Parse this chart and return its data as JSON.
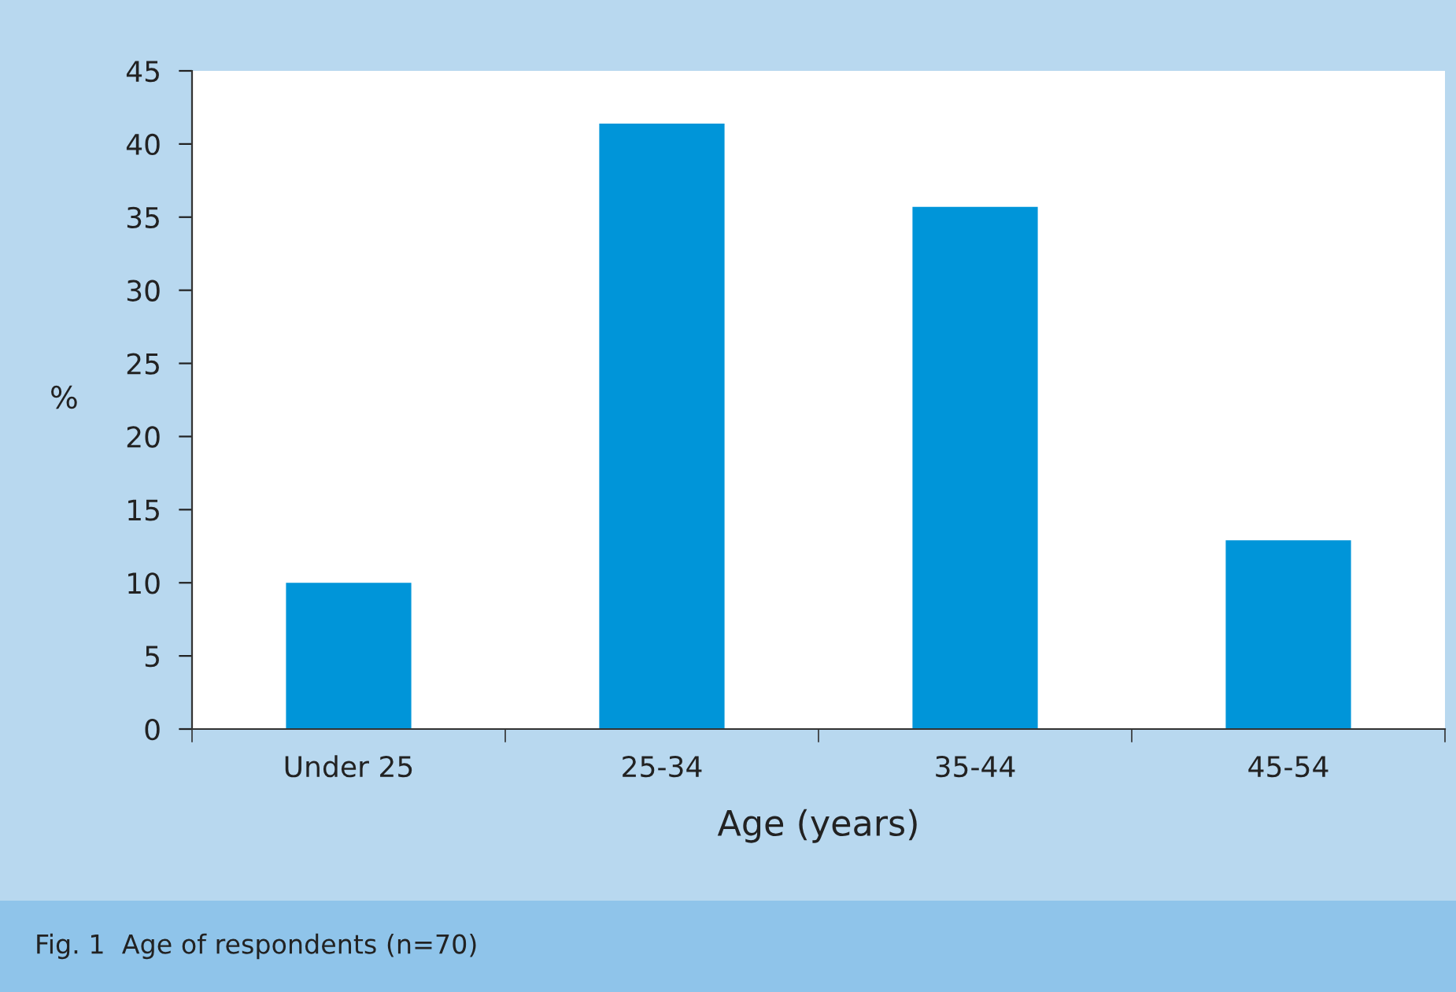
{
  "chart_data": {
    "type": "bar",
    "categories": [
      "Under 25",
      "25-34",
      "35-44",
      "45-54"
    ],
    "values": [
      10,
      41.4,
      35.7,
      12.9
    ],
    "color": "#0095d9",
    "xlabel": "Age (years)",
    "ylabel": "%",
    "ylim": [
      0,
      45
    ],
    "yticks": [
      0,
      5,
      10,
      15,
      20,
      25,
      30,
      35,
      40,
      45
    ],
    "grid": false,
    "annotations": [
      "Fig. 1  Age of respondents (n=70)"
    ]
  }
}
